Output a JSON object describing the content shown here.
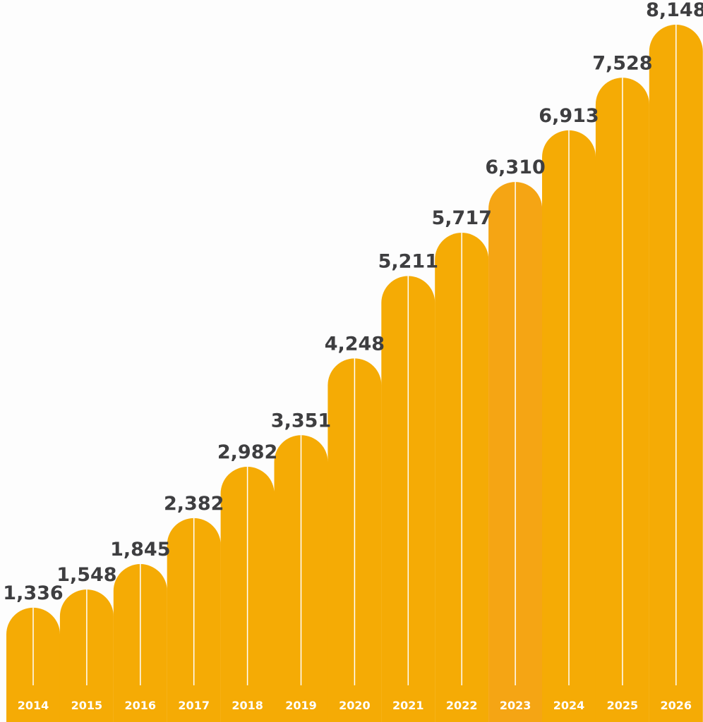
{
  "chart_data": {
    "type": "bar",
    "title": "",
    "xlabel": "",
    "ylabel": "",
    "categories": [
      "2014",
      "2015",
      "2016",
      "2017",
      "2018",
      "2019",
      "2020",
      "2021",
      "2022",
      "2023",
      "2024",
      "2025",
      "2026"
    ],
    "values": [
      1336,
      1548,
      1845,
      2382,
      2982,
      3351,
      4248,
      5211,
      5717,
      6310,
      6913,
      7528,
      8148
    ],
    "value_labels": [
      "1,336",
      "1,548",
      "1,845",
      "2,382",
      "2,982",
      "3,351",
      "4,248",
      "5,211",
      "5,717",
      "6,310",
      "6,913",
      "7,528",
      "8,148"
    ],
    "grid": false,
    "legend": "none",
    "colors": {
      "bar": "#f5ab05",
      "bar_highlight": "#f5a514",
      "value_text": "#3e3e40",
      "year_text": "#ffffff",
      "divider": "#ffffff",
      "background": "#fdfdfd"
    }
  }
}
